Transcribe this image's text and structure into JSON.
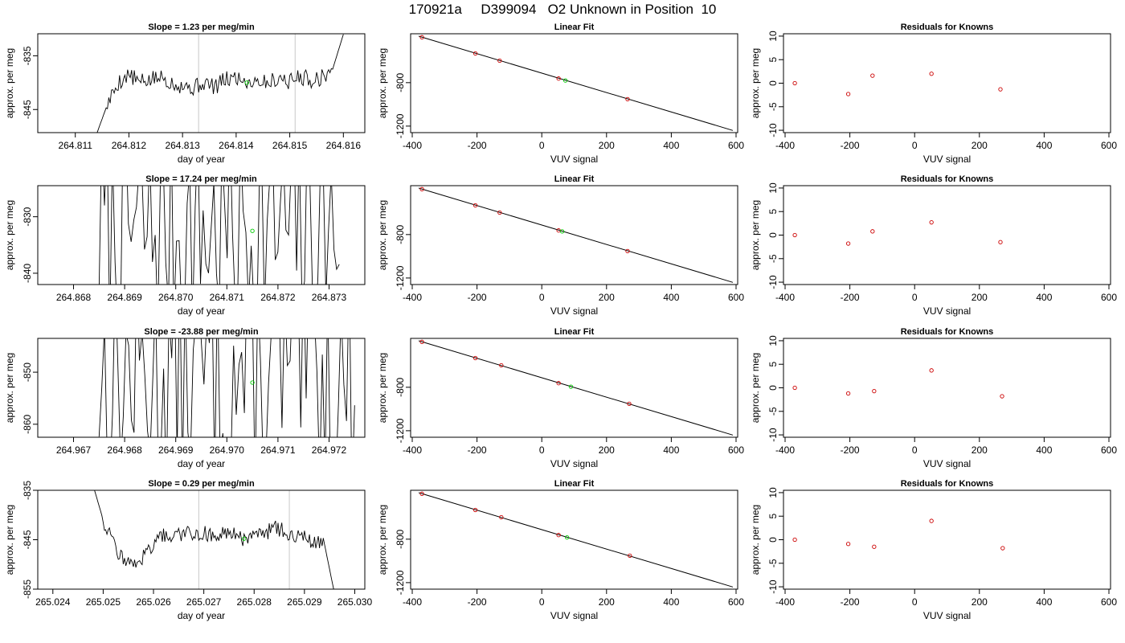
{
  "page": {
    "title": "170921a     D399094   O2 Unknown in Position  10"
  },
  "colors": {
    "trace": "#000000",
    "known_point": "#cc0000",
    "unknown_point": "#00cc00",
    "marker_line": "#c8c8c8"
  },
  "chart_data": [
    {
      "type": "line",
      "panel": "time-series",
      "row": 1,
      "title": "Slope =  1.23  per meg/min",
      "xlabel": "day of year",
      "ylabel": "approx. per meg",
      "xlim": [
        264.8103,
        264.8164
      ],
      "ylim": [
        -849.3,
        -830.9
      ],
      "xticks": [
        264.811,
        264.812,
        264.813,
        264.814,
        264.815,
        264.816
      ],
      "xtick_labels": [
        "264.811",
        "264.812",
        "264.813",
        "264.814",
        "264.815",
        "264.816"
      ],
      "yticks": [
        -835,
        -845
      ],
      "ytick_labels": [
        "-835",
        "-845"
      ],
      "vlines": [
        264.8133,
        264.8151
      ],
      "unknown_point": {
        "x": 264.8142,
        "y": -840
      },
      "trace_kind": "smooth",
      "trace_x": [
        264.8114,
        264.8116,
        264.8118,
        264.812,
        264.8122,
        264.8124,
        264.8126,
        264.8128,
        264.813,
        264.8132,
        264.8134,
        264.8136,
        264.8138,
        264.814,
        264.8142,
        264.8144,
        264.8146,
        264.8148,
        264.815,
        264.8152,
        264.8154,
        264.8156,
        264.8158,
        264.816
      ],
      "trace_y": [
        -849.5,
        -844,
        -840,
        -838.5,
        -840,
        -839.5,
        -839,
        -840,
        -840.5,
        -841,
        -840,
        -840.8,
        -839.5,
        -839,
        -839.8,
        -839.5,
        -840,
        -839,
        -839.8,
        -838.8,
        -839.5,
        -839,
        -837.5,
        -831
      ]
    },
    {
      "type": "scatter",
      "panel": "linear-fit",
      "row": 1,
      "title": "Linear Fit",
      "xlabel": "VUV signal",
      "ylabel": "approx. per meg",
      "xlim": [
        -405,
        605
      ],
      "ylim": [
        -1260,
        -350
      ],
      "xticks": [
        -400,
        -200,
        0,
        200,
        400,
        600
      ],
      "xtick_labels": [
        "-400",
        "-200",
        "0",
        "200",
        "400",
        "600"
      ],
      "yticks": [
        -800,
        -1200
      ],
      "ytick_labels": [
        "-800",
        "-1200"
      ],
      "fit_line": {
        "x": [
          -380,
          590
        ],
        "y": [
          -372,
          -1240
        ]
      },
      "knowns": {
        "x": [
          -370,
          -205,
          -130,
          52,
          265
        ],
        "y": [
          -382,
          -531,
          -598,
          -762,
          -952
        ]
      },
      "unknown": {
        "x": 73,
        "y": -780
      }
    },
    {
      "type": "scatter",
      "panel": "residuals",
      "row": 1,
      "title": "Residuals for Knowns",
      "xlabel": "VUV signal",
      "ylabel": "approx. per meg",
      "xlim": [
        -405,
        605
      ],
      "ylim": [
        -10.5,
        10.5
      ],
      "xticks": [
        -400,
        -200,
        0,
        200,
        400,
        600
      ],
      "xtick_labels": [
        "-400",
        "-200",
        "0",
        "200",
        "400",
        "600"
      ],
      "yticks": [
        10,
        5,
        0,
        -5,
        -10
      ],
      "ytick_labels": [
        "10",
        "5",
        "0",
        "-5",
        "-10"
      ],
      "points": {
        "x": [
          -370,
          -205,
          -130,
          52,
          265
        ],
        "y": [
          0,
          -2.3,
          1.6,
          2,
          -1.3
        ]
      }
    },
    {
      "type": "line",
      "panel": "time-series",
      "row": 2,
      "title": "Slope =  17.24  per meg/min",
      "xlabel": "day of year",
      "ylabel": "approx. per meg",
      "xlim": [
        264.8673,
        264.8737
      ],
      "ylim": [
        -842,
        -824.5
      ],
      "xticks": [
        264.868,
        264.869,
        264.87,
        264.871,
        264.872,
        264.873
      ],
      "xtick_labels": [
        "264.868",
        "264.869",
        "264.870",
        "264.871",
        "264.872",
        "264.873"
      ],
      "yticks": [
        -830,
        -840
      ],
      "ytick_labels": [
        "-830",
        "-840"
      ],
      "vlines": [],
      "unknown_point": {
        "x": 264.8715,
        "y": -832.5
      },
      "trace_kind": "noisy",
      "trace_range": [
        264.8685,
        264.8732
      ],
      "trace_center": -832.5,
      "trace_amp": 20,
      "trace_n": 90,
      "trace_seed": 7
    },
    {
      "type": "scatter",
      "panel": "linear-fit",
      "row": 2,
      "title": "Linear Fit",
      "xlabel": "VUV signal",
      "ylabel": "approx. per meg",
      "xlim": [
        -405,
        605
      ],
      "ylim": [
        -1260,
        -350
      ],
      "xticks": [
        -400,
        -200,
        0,
        200,
        400,
        600
      ],
      "xtick_labels": [
        "-400",
        "-200",
        "0",
        "200",
        "400",
        "600"
      ],
      "yticks": [
        -800,
        -1200
      ],
      "ytick_labels": [
        "-800",
        "-1200"
      ],
      "fit_line": {
        "x": [
          -380,
          590
        ],
        "y": [
          -372,
          -1240
        ]
      },
      "knowns": {
        "x": [
          -370,
          -205,
          -130,
          52,
          265
        ],
        "y": [
          -382,
          -531,
          -598,
          -762,
          -952
        ]
      },
      "unknown": {
        "x": 63,
        "y": -771
      }
    },
    {
      "type": "scatter",
      "panel": "residuals",
      "row": 2,
      "title": "Residuals for Knowns",
      "xlabel": "VUV signal",
      "ylabel": "approx. per meg",
      "xlim": [
        -405,
        605
      ],
      "ylim": [
        -10.5,
        10.5
      ],
      "xticks": [
        -400,
        -200,
        0,
        200,
        400,
        600
      ],
      "xtick_labels": [
        "-400",
        "-200",
        "0",
        "200",
        "400",
        "600"
      ],
      "yticks": [
        10,
        5,
        0,
        -5,
        -10
      ],
      "ytick_labels": [
        "10",
        "5",
        "0",
        "-5",
        "-10"
      ],
      "points": {
        "x": [
          -370,
          -205,
          -130,
          52,
          265
        ],
        "y": [
          0,
          -1.8,
          0.8,
          2.7,
          -1.5
        ]
      }
    },
    {
      "type": "line",
      "panel": "time-series",
      "row": 3,
      "title": "Slope =  -23.88  per meg/min",
      "xlabel": "day of year",
      "ylabel": "approx. per meg",
      "xlim": [
        264.9663,
        264.9727
      ],
      "ylim": [
        -862.5,
        -843.5
      ],
      "xticks": [
        264.967,
        264.968,
        264.969,
        264.97,
        264.971,
        264.972
      ],
      "xtick_labels": [
        "264.967",
        "264.968",
        "264.969",
        "264.970",
        "264.971",
        "264.972"
      ],
      "yticks": [
        -850,
        -860
      ],
      "ytick_labels": [
        "-850",
        "-860"
      ],
      "vlines": [],
      "unknown_point": {
        "x": 264.9705,
        "y": -852
      },
      "trace_kind": "noisy",
      "trace_range": [
        264.9675,
        264.9725
      ],
      "trace_center": -851,
      "trace_amp": 22,
      "trace_n": 95,
      "trace_seed": 13
    },
    {
      "type": "scatter",
      "panel": "linear-fit",
      "row": 3,
      "title": "Linear Fit",
      "xlabel": "VUV signal",
      "ylabel": "approx. per meg",
      "xlim": [
        -405,
        605
      ],
      "ylim": [
        -1260,
        -350
      ],
      "xticks": [
        -400,
        -200,
        0,
        200,
        400,
        600
      ],
      "xtick_labels": [
        "-400",
        "-200",
        "0",
        "200",
        "400",
        "600"
      ],
      "yticks": [
        -800,
        -1200
      ],
      "ytick_labels": [
        "-800",
        "-1200"
      ],
      "fit_line": {
        "x": [
          -380,
          590
        ],
        "y": [
          -372,
          -1240
        ]
      },
      "knowns": {
        "x": [
          -370,
          -205,
          -125,
          52,
          270
        ],
        "y": [
          -382,
          -531,
          -598,
          -762,
          -952
        ]
      },
      "unknown": {
        "x": 90,
        "y": -795
      }
    },
    {
      "type": "scatter",
      "panel": "residuals",
      "row": 3,
      "title": "Residuals for Knowns",
      "xlabel": "VUV signal",
      "ylabel": "approx. per meg",
      "xlim": [
        -405,
        605
      ],
      "ylim": [
        -10.5,
        10.5
      ],
      "xticks": [
        -400,
        -200,
        0,
        200,
        400,
        600
      ],
      "xtick_labels": [
        "-400",
        "-200",
        "0",
        "200",
        "400",
        "600"
      ],
      "points": {
        "x": [
          -370,
          -205,
          -125,
          52,
          270
        ],
        "y": [
          0,
          -1.2,
          -0.7,
          3.7,
          -1.8
        ]
      },
      "yticks": [
        10,
        5,
        0,
        -5,
        -10
      ],
      "ytick_labels": [
        "10",
        "5",
        "0",
        "-5",
        "-10"
      ]
    },
    {
      "type": "line",
      "panel": "time-series",
      "row": 4,
      "title": "Slope =  0.29  per meg/min",
      "xlabel": "day of year",
      "ylabel": "approx. per meg",
      "xlim": [
        265.0237,
        265.0302
      ],
      "ylim": [
        -855,
        -835
      ],
      "xticks": [
        265.024,
        265.025,
        265.026,
        265.027,
        265.028,
        265.029,
        265.03
      ],
      "xtick_labels": [
        "265.024",
        "265.025",
        "265.026",
        "265.027",
        "265.028",
        "265.029",
        "265.030"
      ],
      "yticks": [
        -835,
        -845,
        -855
      ],
      "ytick_labels": [
        "-835",
        "-845",
        "-855"
      ],
      "vlines": [
        265.0269,
        265.0287
      ],
      "unknown_point": {
        "x": 265.0278,
        "y": -844.8
      },
      "trace_kind": "smooth",
      "trace_x": [
        265.0248,
        265.025,
        265.0252,
        265.0254,
        265.0256,
        265.0258,
        265.026,
        265.0262,
        265.0264,
        265.0266,
        265.0268,
        265.027,
        265.0272,
        265.0274,
        265.0276,
        265.0278,
        265.028,
        265.0282,
        265.0284,
        265.0286,
        265.0288,
        265.029,
        265.0292,
        265.0294,
        265.0296
      ],
      "trace_y": [
        -834,
        -841,
        -846,
        -849,
        -850,
        -848.5,
        -846,
        -844,
        -844.5,
        -843.5,
        -844,
        -843.5,
        -844.5,
        -843.5,
        -844,
        -845,
        -844,
        -844.5,
        -842,
        -843.5,
        -844,
        -844.5,
        -845.5,
        -846,
        -856
      ]
    },
    {
      "type": "scatter",
      "panel": "linear-fit",
      "row": 4,
      "title": "Linear Fit",
      "xlabel": "VUV signal",
      "ylabel": "approx. per meg",
      "xlim": [
        -405,
        605
      ],
      "ylim": [
        -1260,
        -350
      ],
      "xticks": [
        -400,
        -200,
        0,
        200,
        400,
        600
      ],
      "xtick_labels": [
        "-400",
        "-200",
        "0",
        "200",
        "400",
        "600"
      ],
      "yticks": [
        -800,
        -1200
      ],
      "ytick_labels": [
        "-800",
        "-1200"
      ],
      "fit_line": {
        "x": [
          -380,
          590
        ],
        "y": [
          -372,
          -1240
        ]
      },
      "knowns": {
        "x": [
          -370,
          -205,
          -125,
          52,
          272
        ],
        "y": [
          -382,
          -531,
          -598,
          -762,
          -952
        ]
      },
      "unknown": {
        "x": 78,
        "y": -784
      }
    },
    {
      "type": "scatter",
      "panel": "residuals",
      "row": 4,
      "title": "Residuals for Knowns",
      "xlabel": "VUV signal",
      "ylabel": "approx. per meg",
      "xlim": [
        -405,
        605
      ],
      "ylim": [
        -10.5,
        10.5
      ],
      "xticks": [
        -400,
        -200,
        0,
        200,
        400,
        600
      ],
      "xtick_labels": [
        "-400",
        "-200",
        "0",
        "200",
        "400",
        "600"
      ],
      "yticks": [
        10,
        5,
        0,
        -5,
        -10
      ],
      "ytick_labels": [
        "10",
        "5",
        "0",
        "-5",
        "-10"
      ],
      "points": {
        "x": [
          -370,
          -205,
          -125,
          52,
          272
        ],
        "y": [
          0,
          -0.9,
          -1.5,
          4,
          -1.8
        ]
      }
    }
  ]
}
